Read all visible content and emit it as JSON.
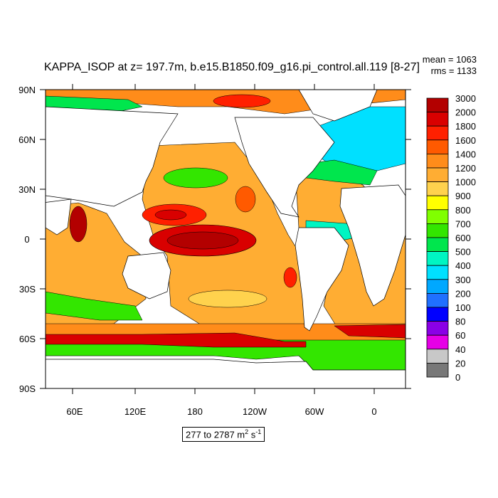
{
  "figure": {
    "title": "KAPPA_ISOP at z= 197.7m, b.e15.B1850.f09_g16.pi_control.all.119 [8-27]",
    "mean_text": "mean = 1063",
    "rms_text": "rms = 1133",
    "range_text": "277 to 2787 m",
    "range_unit_m_sup": "2",
    "range_unit_s": " s",
    "range_unit_s_sup": "-1"
  },
  "axes": {
    "y_ticks": [
      "90N",
      "60N",
      "30N",
      "0",
      "30S",
      "60S",
      "90S"
    ],
    "x_ticks": [
      "60E",
      "120E",
      "180",
      "120W",
      "60W",
      "0"
    ]
  },
  "colorbar": {
    "levels": [
      "3000",
      "2000",
      "1800",
      "1600",
      "1400",
      "1200",
      "1000",
      "900",
      "800",
      "700",
      "600",
      "500",
      "400",
      "300",
      "200",
      "100",
      "80",
      "60",
      "40",
      "20",
      "0"
    ],
    "colors": [
      "#b30000",
      "#d90000",
      "#ff2000",
      "#ff5a00",
      "#ff8c1a",
      "#ffad33",
      "#ffd24d",
      "#ffff00",
      "#80ff00",
      "#33e600",
      "#00e64d",
      "#00f5c2",
      "#00e0ff",
      "#00a8ff",
      "#2070ff",
      "#0000ff",
      "#8a00e6",
      "#e600e6",
      "#c8c8c8",
      "#787878"
    ]
  }
}
